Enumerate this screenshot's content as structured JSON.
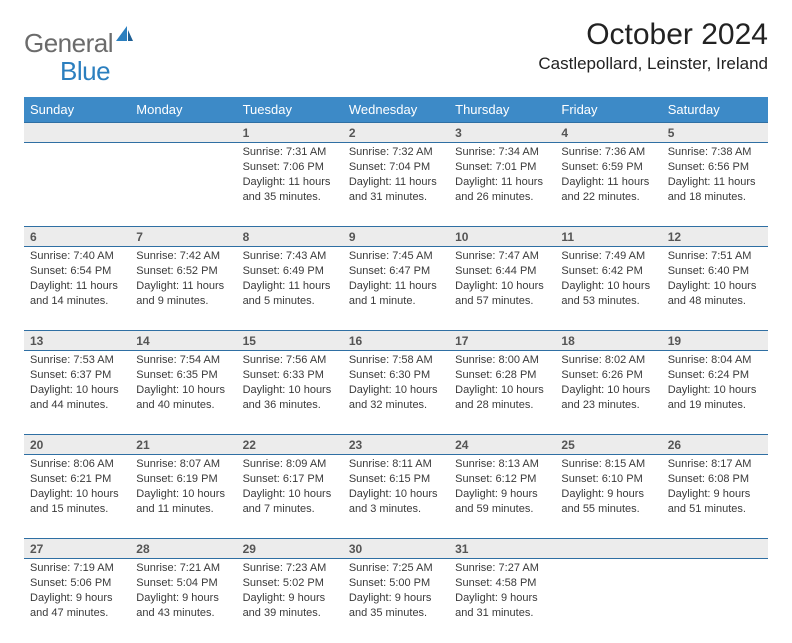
{
  "brand": {
    "part1": "General",
    "part2": "Blue"
  },
  "title": "October 2024",
  "location": "Castlepollard, Leinster, Ireland",
  "colors": {
    "header_bg": "#3d8ac7",
    "header_text": "#ffffff",
    "rule": "#2f6fa3",
    "daynum_bg": "#ececec",
    "daynum_text": "#555555",
    "body_text": "#3a3a3a",
    "logo_gray": "#6b6b6b",
    "logo_blue": "#2b7fbf"
  },
  "weekdays": [
    "Sunday",
    "Monday",
    "Tuesday",
    "Wednesday",
    "Thursday",
    "Friday",
    "Saturday"
  ],
  "weeks": [
    [
      null,
      null,
      {
        "n": "1",
        "sr": "7:31 AM",
        "ss": "7:06 PM",
        "dl": "11 hours and 35 minutes."
      },
      {
        "n": "2",
        "sr": "7:32 AM",
        "ss": "7:04 PM",
        "dl": "11 hours and 31 minutes."
      },
      {
        "n": "3",
        "sr": "7:34 AM",
        "ss": "7:01 PM",
        "dl": "11 hours and 26 minutes."
      },
      {
        "n": "4",
        "sr": "7:36 AM",
        "ss": "6:59 PM",
        "dl": "11 hours and 22 minutes."
      },
      {
        "n": "5",
        "sr": "7:38 AM",
        "ss": "6:56 PM",
        "dl": "11 hours and 18 minutes."
      }
    ],
    [
      {
        "n": "6",
        "sr": "7:40 AM",
        "ss": "6:54 PM",
        "dl": "11 hours and 14 minutes."
      },
      {
        "n": "7",
        "sr": "7:42 AM",
        "ss": "6:52 PM",
        "dl": "11 hours and 9 minutes."
      },
      {
        "n": "8",
        "sr": "7:43 AM",
        "ss": "6:49 PM",
        "dl": "11 hours and 5 minutes."
      },
      {
        "n": "9",
        "sr": "7:45 AM",
        "ss": "6:47 PM",
        "dl": "11 hours and 1 minute."
      },
      {
        "n": "10",
        "sr": "7:47 AM",
        "ss": "6:44 PM",
        "dl": "10 hours and 57 minutes."
      },
      {
        "n": "11",
        "sr": "7:49 AM",
        "ss": "6:42 PM",
        "dl": "10 hours and 53 minutes."
      },
      {
        "n": "12",
        "sr": "7:51 AM",
        "ss": "6:40 PM",
        "dl": "10 hours and 48 minutes."
      }
    ],
    [
      {
        "n": "13",
        "sr": "7:53 AM",
        "ss": "6:37 PM",
        "dl": "10 hours and 44 minutes."
      },
      {
        "n": "14",
        "sr": "7:54 AM",
        "ss": "6:35 PM",
        "dl": "10 hours and 40 minutes."
      },
      {
        "n": "15",
        "sr": "7:56 AM",
        "ss": "6:33 PM",
        "dl": "10 hours and 36 minutes."
      },
      {
        "n": "16",
        "sr": "7:58 AM",
        "ss": "6:30 PM",
        "dl": "10 hours and 32 minutes."
      },
      {
        "n": "17",
        "sr": "8:00 AM",
        "ss": "6:28 PM",
        "dl": "10 hours and 28 minutes."
      },
      {
        "n": "18",
        "sr": "8:02 AM",
        "ss": "6:26 PM",
        "dl": "10 hours and 23 minutes."
      },
      {
        "n": "19",
        "sr": "8:04 AM",
        "ss": "6:24 PM",
        "dl": "10 hours and 19 minutes."
      }
    ],
    [
      {
        "n": "20",
        "sr": "8:06 AM",
        "ss": "6:21 PM",
        "dl": "10 hours and 15 minutes."
      },
      {
        "n": "21",
        "sr": "8:07 AM",
        "ss": "6:19 PM",
        "dl": "10 hours and 11 minutes."
      },
      {
        "n": "22",
        "sr": "8:09 AM",
        "ss": "6:17 PM",
        "dl": "10 hours and 7 minutes."
      },
      {
        "n": "23",
        "sr": "8:11 AM",
        "ss": "6:15 PM",
        "dl": "10 hours and 3 minutes."
      },
      {
        "n": "24",
        "sr": "8:13 AM",
        "ss": "6:12 PM",
        "dl": "9 hours and 59 minutes."
      },
      {
        "n": "25",
        "sr": "8:15 AM",
        "ss": "6:10 PM",
        "dl": "9 hours and 55 minutes."
      },
      {
        "n": "26",
        "sr": "8:17 AM",
        "ss": "6:08 PM",
        "dl": "9 hours and 51 minutes."
      }
    ],
    [
      {
        "n": "27",
        "sr": "7:19 AM",
        "ss": "5:06 PM",
        "dl": "9 hours and 47 minutes."
      },
      {
        "n": "28",
        "sr": "7:21 AM",
        "ss": "5:04 PM",
        "dl": "9 hours and 43 minutes."
      },
      {
        "n": "29",
        "sr": "7:23 AM",
        "ss": "5:02 PM",
        "dl": "9 hours and 39 minutes."
      },
      {
        "n": "30",
        "sr": "7:25 AM",
        "ss": "5:00 PM",
        "dl": "9 hours and 35 minutes."
      },
      {
        "n": "31",
        "sr": "7:27 AM",
        "ss": "4:58 PM",
        "dl": "9 hours and 31 minutes."
      },
      null,
      null
    ]
  ],
  "labels": {
    "sunrise": "Sunrise:",
    "sunset": "Sunset:",
    "daylight": "Daylight:"
  }
}
